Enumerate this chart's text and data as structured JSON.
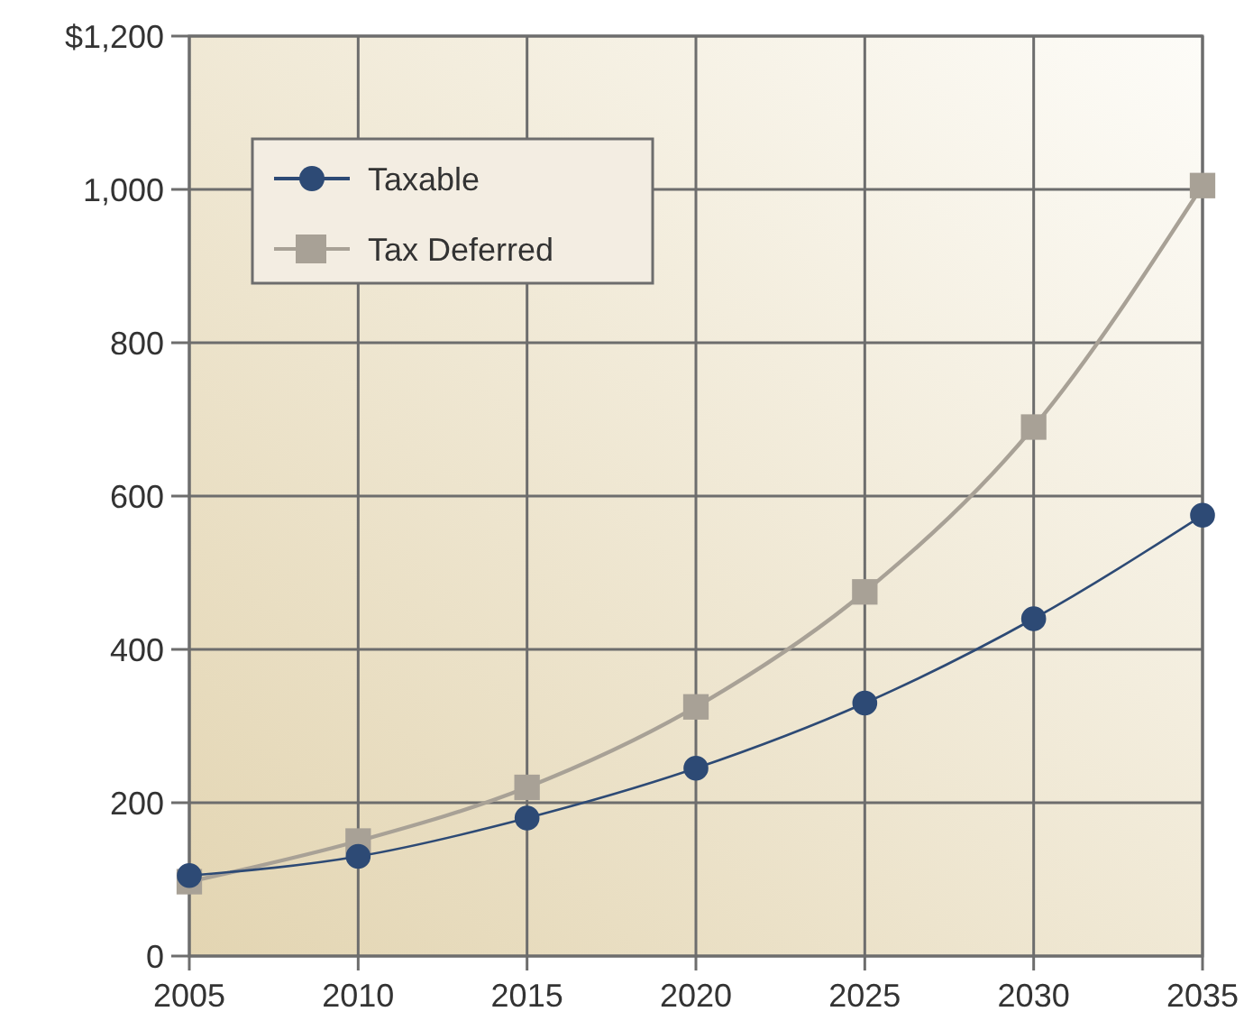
{
  "chart_data": {
    "type": "line",
    "x": [
      2005,
      2010,
      2015,
      2020,
      2025,
      2030,
      2035
    ],
    "series": [
      {
        "name": "Tax Deferred",
        "color": "#a8a196",
        "marker": "square",
        "values": [
          97,
          150,
          220,
          325,
          475,
          690,
          1005
        ]
      },
      {
        "name": "Taxable",
        "color": "#2d4a75",
        "marker": "circle",
        "values": [
          105,
          130,
          180,
          245,
          330,
          440,
          575
        ]
      }
    ],
    "xlim": [
      2005,
      2035
    ],
    "xticks": [
      2005,
      2010,
      2015,
      2020,
      2025,
      2030,
      2035
    ],
    "ylim": [
      0,
      1200
    ],
    "yticks": [
      0,
      200,
      400,
      600,
      800,
      {
        "value": 1000,
        "label": "1,000"
      },
      {
        "value": 1200,
        "label": "$1,200"
      }
    ],
    "grid": true,
    "legend": "top left"
  }
}
